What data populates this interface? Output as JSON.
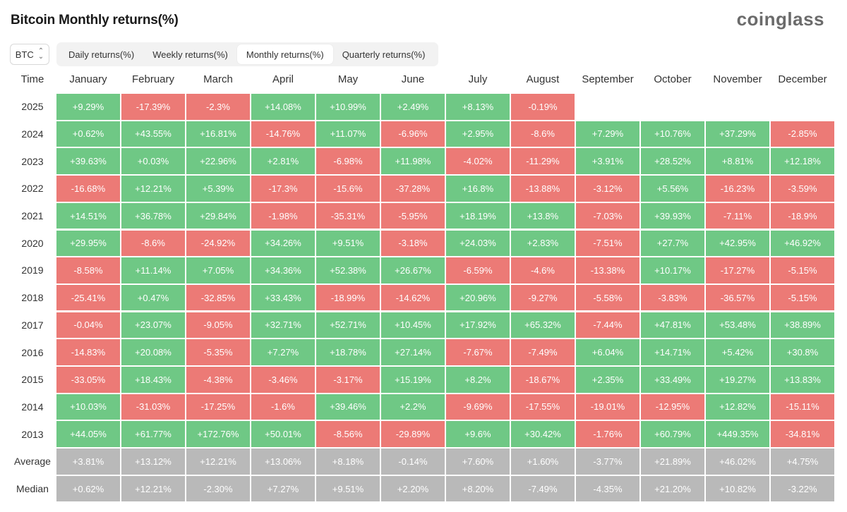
{
  "header": {
    "title": "Bitcoin Monthly returns(%)",
    "logo": "coinglass"
  },
  "controls": {
    "asset": "BTC",
    "tabs": [
      {
        "label": "Daily returns(%)",
        "active": false
      },
      {
        "label": "Weekly returns(%)",
        "active": false
      },
      {
        "label": "Monthly returns(%)",
        "active": true
      },
      {
        "label": "Quarterly returns(%)",
        "active": false
      }
    ]
  },
  "colors": {
    "positive": "#6fc885",
    "negative": "#ec7a76",
    "summary": "#b9b9b9"
  },
  "chart_data": {
    "type": "heatmap",
    "corner_label": "Time",
    "columns": [
      "January",
      "February",
      "March",
      "April",
      "May",
      "June",
      "July",
      "August",
      "September",
      "October",
      "November",
      "December"
    ],
    "rows": [
      {
        "label": "2025",
        "values": [
          "+9.29%",
          "-17.39%",
          "-2.3%",
          "+14.08%",
          "+10.99%",
          "+2.49%",
          "+8.13%",
          "-0.19%",
          "",
          "",
          "",
          ""
        ]
      },
      {
        "label": "2024",
        "values": [
          "+0.62%",
          "+43.55%",
          "+16.81%",
          "-14.76%",
          "+11.07%",
          "-6.96%",
          "+2.95%",
          "-8.6%",
          "+7.29%",
          "+10.76%",
          "+37.29%",
          "-2.85%"
        ]
      },
      {
        "label": "2023",
        "values": [
          "+39.63%",
          "+0.03%",
          "+22.96%",
          "+2.81%",
          "-6.98%",
          "+11.98%",
          "-4.02%",
          "-11.29%",
          "+3.91%",
          "+28.52%",
          "+8.81%",
          "+12.18%"
        ]
      },
      {
        "label": "2022",
        "values": [
          "-16.68%",
          "+12.21%",
          "+5.39%",
          "-17.3%",
          "-15.6%",
          "-37.28%",
          "+16.8%",
          "-13.88%",
          "-3.12%",
          "+5.56%",
          "-16.23%",
          "-3.59%"
        ]
      },
      {
        "label": "2021",
        "values": [
          "+14.51%",
          "+36.78%",
          "+29.84%",
          "-1.98%",
          "-35.31%",
          "-5.95%",
          "+18.19%",
          "+13.8%",
          "-7.03%",
          "+39.93%",
          "-7.11%",
          "-18.9%"
        ]
      },
      {
        "label": "2020",
        "values": [
          "+29.95%",
          "-8.6%",
          "-24.92%",
          "+34.26%",
          "+9.51%",
          "-3.18%",
          "+24.03%",
          "+2.83%",
          "-7.51%",
          "+27.7%",
          "+42.95%",
          "+46.92%"
        ]
      },
      {
        "label": "2019",
        "values": [
          "-8.58%",
          "+11.14%",
          "+7.05%",
          "+34.36%",
          "+52.38%",
          "+26.67%",
          "-6.59%",
          "-4.6%",
          "-13.38%",
          "+10.17%",
          "-17.27%",
          "-5.15%"
        ]
      },
      {
        "label": "2018",
        "values": [
          "-25.41%",
          "+0.47%",
          "-32.85%",
          "+33.43%",
          "-18.99%",
          "-14.62%",
          "+20.96%",
          "-9.27%",
          "-5.58%",
          "-3.83%",
          "-36.57%",
          "-5.15%"
        ]
      },
      {
        "label": "2017",
        "values": [
          "-0.04%",
          "+23.07%",
          "-9.05%",
          "+32.71%",
          "+52.71%",
          "+10.45%",
          "+17.92%",
          "+65.32%",
          "-7.44%",
          "+47.81%",
          "+53.48%",
          "+38.89%"
        ]
      },
      {
        "label": "2016",
        "values": [
          "-14.83%",
          "+20.08%",
          "-5.35%",
          "+7.27%",
          "+18.78%",
          "+27.14%",
          "-7.67%",
          "-7.49%",
          "+6.04%",
          "+14.71%",
          "+5.42%",
          "+30.8%"
        ]
      },
      {
        "label": "2015",
        "values": [
          "-33.05%",
          "+18.43%",
          "-4.38%",
          "-3.46%",
          "-3.17%",
          "+15.19%",
          "+8.2%",
          "-18.67%",
          "+2.35%",
          "+33.49%",
          "+19.27%",
          "+13.83%"
        ]
      },
      {
        "label": "2014",
        "values": [
          "+10.03%",
          "-31.03%",
          "-17.25%",
          "-1.6%",
          "+39.46%",
          "+2.2%",
          "-9.69%",
          "-17.55%",
          "-19.01%",
          "-12.95%",
          "+12.82%",
          "-15.11%"
        ]
      },
      {
        "label": "2013",
        "values": [
          "+44.05%",
          "+61.77%",
          "+172.76%",
          "+50.01%",
          "-8.56%",
          "-29.89%",
          "+9.6%",
          "+30.42%",
          "-1.76%",
          "+60.79%",
          "+449.35%",
          "-34.81%"
        ]
      }
    ],
    "summary_rows": [
      {
        "label": "Average",
        "values": [
          "+3.81%",
          "+13.12%",
          "+12.21%",
          "+13.06%",
          "+8.18%",
          "-0.14%",
          "+7.60%",
          "+1.60%",
          "-3.77%",
          "+21.89%",
          "+46.02%",
          "+4.75%"
        ]
      },
      {
        "label": "Median",
        "values": [
          "+0.62%",
          "+12.21%",
          "-2.30%",
          "+7.27%",
          "+9.51%",
          "+2.20%",
          "+8.20%",
          "-7.49%",
          "-4.35%",
          "+21.20%",
          "+10.82%",
          "-3.22%"
        ]
      }
    ]
  }
}
